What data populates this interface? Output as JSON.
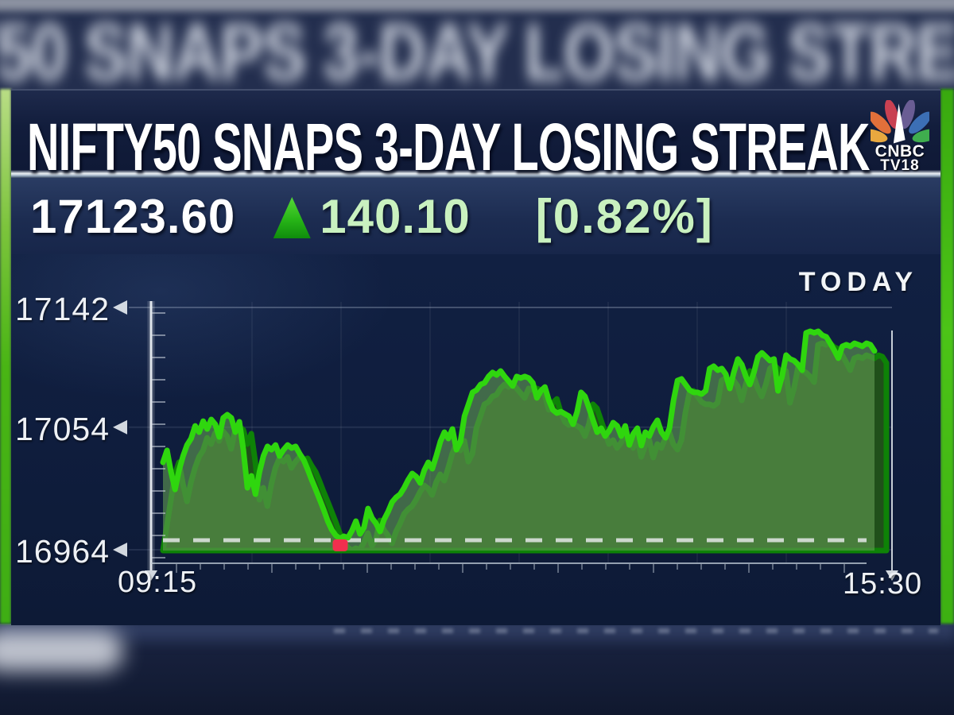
{
  "header": {
    "headline": "NIFTY50 SNAPS 3-DAY LOSING STREAK",
    "logo_line1": "CNBC",
    "logo_line2": "TV18"
  },
  "quote": {
    "value": "17123.60",
    "direction": "up",
    "change": "140.10",
    "change_pct": "[0.82%]"
  },
  "chart_label": "TODAY",
  "colors": {
    "line_green": "#2fd60e",
    "shadow_green_line": "#0e8207",
    "shadow_green_fill": "#20501a",
    "area_fill": "rgba(97,153,82,0.62)",
    "marker_red": "#f22f4e",
    "dashed_reference": "#d8dfda",
    "light_green_text": "#c9f1bf",
    "navy_background": "#0e1b37",
    "axis_gray": "#e8edf2"
  },
  "chart_data": {
    "type": "area",
    "title": "NIFTY50 intraday price",
    "x_start": "09:15",
    "x_end": "15:30",
    "x_ticks": [
      "09:15",
      "15:30"
    ],
    "y_ticks": [
      "17142",
      "17054",
      "16964"
    ],
    "ylim": [
      16964,
      17142
    ],
    "grid": "faint",
    "legend_position": "none",
    "dashed_reference_level": 16971,
    "low_marker_price": 16972.2,
    "prices": [
      17028.2,
      17037.0,
      17021.2,
      17008.3,
      17022.4,
      17032.9,
      17041.0,
      17045.7,
      17055.0,
      17050.4,
      17058.5,
      17052.7,
      17059.7,
      17056.2,
      17046.9,
      17060.9,
      17063.2,
      17060.9,
      17050.4,
      17058.0,
      17037.5,
      17009.5,
      17018.3,
      17004.8,
      17021.2,
      17032.9,
      17039.9,
      17037.5,
      17041.0,
      17032.9,
      17037.5,
      17041.0,
      17038.7,
      17039.9,
      17034.6,
      17030.0,
      17023.0,
      17015.3,
      17008.3,
      17000.8,
      16993.2,
      16985.0,
      16978.6,
      16974.5,
      16972.2,
      16973.9,
      16972.8,
      16978.0,
      16985.0,
      16975.6,
      16980.3,
      16994.3,
      16987.3,
      16983.3,
      16977.4,
      16986.2,
      16992.0,
      16999.0,
      17002.5,
      17004.8,
      17009.5,
      17015.3,
      17020.0,
      17017.7,
      17013.0,
      17022.4,
      17028.2,
      17023.5,
      17032.9,
      17043.4,
      17050.4,
      17045.7,
      17052.7,
      17037.5,
      17043.4,
      17062.1,
      17070.8,
      17079.6,
      17081.3,
      17085.4,
      17086.6,
      17091.3,
      17094.2,
      17092.4,
      17095.3,
      17091.3,
      17087.8,
      17084.3,
      17091.3,
      17090.1,
      17091.3,
      17090.1,
      17086.6,
      17075.5,
      17080.7,
      17083.6,
      17073.7,
      17066.7,
      17064.4,
      17065.5,
      17063.8,
      17062.1,
      17056.2,
      17065.0,
      17079.6,
      17076.6,
      17067.9,
      17059.1,
      17050.4,
      17053.3,
      17047.5,
      17051.5,
      17057.4,
      17055.0,
      17047.5,
      17055.0,
      17041.0,
      17049.2,
      17053.3,
      17040.5,
      17050.4,
      17047.5,
      17054.5,
      17059.1,
      17050.4,
      17046.3,
      17053.3,
      17073.7,
      17088.3,
      17089.5,
      17085.4,
      17081.3,
      17079.6,
      17079.6,
      17078.4,
      17080.7,
      17097.1,
      17098.8,
      17095.9,
      17097.1,
      17093.0,
      17082.5,
      17094.2,
      17104.1,
      17100.0,
      17091.3,
      17085.4,
      17094.2,
      17105.8,
      17108.7,
      17105.8,
      17102.9,
      17104.1,
      17080.7,
      17091.3,
      17107.0,
      17104.1,
      17102.9,
      17100.0,
      17095.9,
      17123.3,
      17124.5,
      17123.3,
      17124.5,
      17121.6,
      17120.4,
      17115.7,
      17110.5,
      17104.7,
      17113.4,
      17114.6,
      17113.4,
      17115.7,
      17114.6,
      17113.4,
      17115.7,
      17114.6,
      17110.0
    ]
  }
}
